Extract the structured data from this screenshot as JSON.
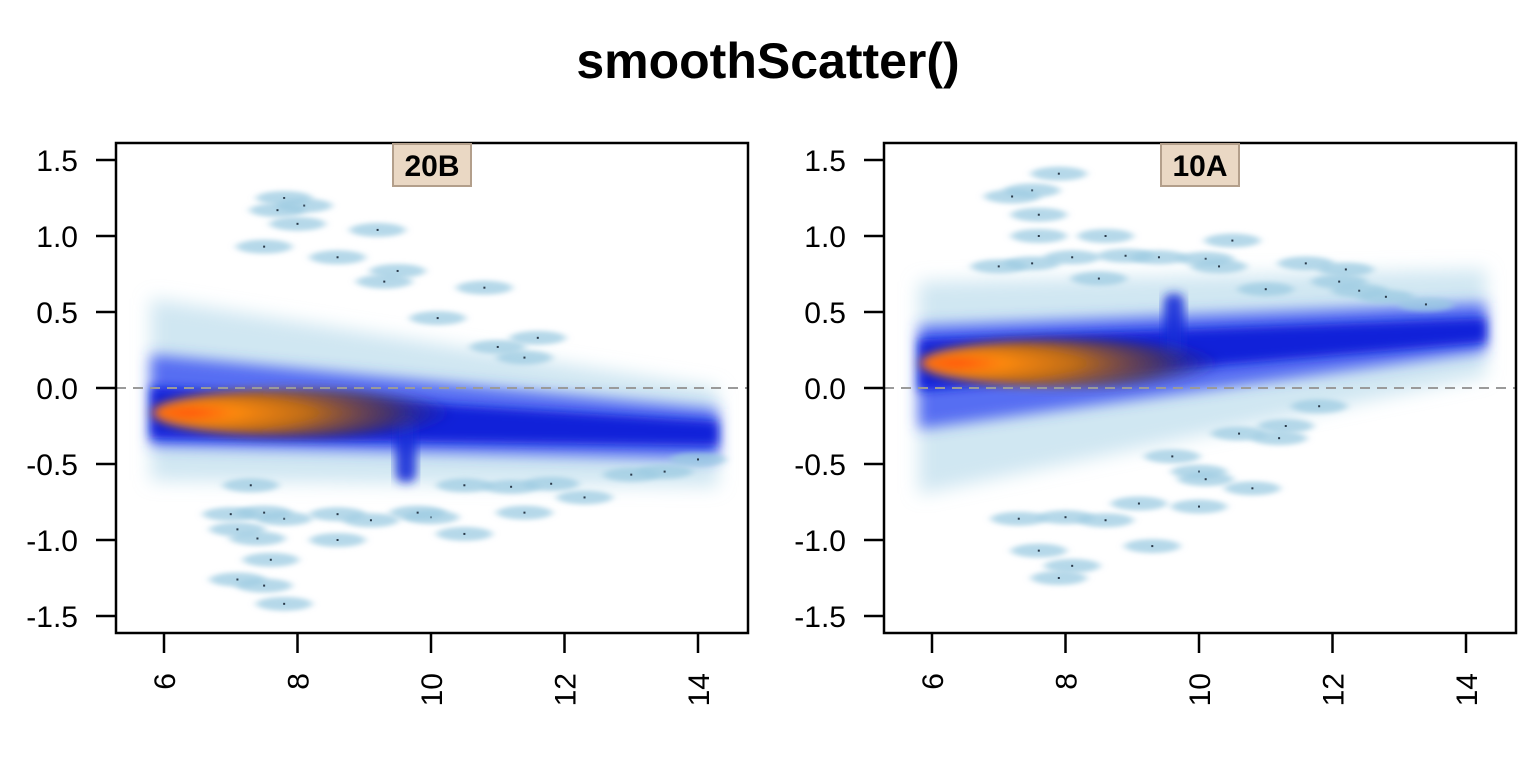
{
  "title": "smoothScatter()",
  "chart_data": [
    {
      "type": "heatmap",
      "panel_label": "20B",
      "xlim": [
        5.3,
        14.8
      ],
      "ylim": [
        -1.62,
        1.62
      ],
      "x_ticks": [
        6,
        8,
        10,
        12,
        14
      ],
      "x_tick_labels": [
        "6",
        "8",
        "10",
        "12",
        "14"
      ],
      "y_ticks": [
        1.5,
        1.0,
        0.5,
        0.0,
        -0.5,
        -1.0,
        -1.5
      ],
      "y_tick_labels": [
        "1.5",
        "1.0",
        "0.5",
        "0.0",
        "-0.5",
        "-1.0",
        "-1.5"
      ],
      "reference_line_y": 0.0,
      "density_core": {
        "x_start": 5.8,
        "x_end": 14.3,
        "y_start": -0.16,
        "y_end": -0.3
      },
      "peak": {
        "x": 6.5,
        "y": -0.15
      },
      "outliers": [
        [
          7.8,
          1.25
        ],
        [
          8.1,
          1.2
        ],
        [
          7.7,
          1.17
        ],
        [
          8.0,
          1.08
        ],
        [
          9.2,
          1.04
        ],
        [
          7.5,
          0.93
        ],
        [
          8.6,
          0.86
        ],
        [
          9.5,
          0.77
        ],
        [
          9.3,
          0.7
        ],
        [
          10.8,
          0.66
        ],
        [
          10.1,
          0.46
        ],
        [
          11.6,
          0.33
        ],
        [
          11.4,
          0.2
        ],
        [
          11.0,
          0.27
        ],
        [
          14.0,
          -0.47
        ],
        [
          13.5,
          -0.55
        ],
        [
          13.0,
          -0.57
        ],
        [
          11.8,
          -0.63
        ],
        [
          11.2,
          -0.65
        ],
        [
          10.5,
          -0.64
        ],
        [
          12.3,
          -0.72
        ],
        [
          11.4,
          -0.82
        ],
        [
          10.0,
          -0.85
        ],
        [
          9.8,
          -0.82
        ],
        [
          9.1,
          -0.87
        ],
        [
          8.6,
          -0.83
        ],
        [
          7.8,
          -0.86
        ],
        [
          7.5,
          -0.82
        ],
        [
          7.0,
          -0.83
        ],
        [
          7.4,
          -0.99
        ],
        [
          8.6,
          -1.0
        ],
        [
          7.1,
          -0.93
        ],
        [
          7.6,
          -1.13
        ],
        [
          7.1,
          -1.26
        ],
        [
          7.5,
          -1.3
        ],
        [
          7.8,
          -1.42
        ],
        [
          10.5,
          -0.96
        ],
        [
          7.3,
          -0.64
        ]
      ]
    },
    {
      "type": "heatmap",
      "panel_label": "10A",
      "xlim": [
        5.3,
        14.8
      ],
      "ylim": [
        -1.62,
        1.62
      ],
      "x_ticks": [
        6,
        8,
        10,
        12,
        14
      ],
      "x_tick_labels": [
        "6",
        "8",
        "10",
        "12",
        "14"
      ],
      "y_ticks": [
        1.5,
        1.0,
        0.5,
        0.0,
        -0.5,
        -1.0,
        -1.5
      ],
      "y_tick_labels": [
        "1.5",
        "1.0",
        "0.5",
        "0.0",
        "-0.5",
        "-1.0",
        "-1.5"
      ],
      "reference_line_y": 0.0,
      "density_core": {
        "x_start": 5.8,
        "x_end": 14.3,
        "y_start": 0.15,
        "y_end": 0.38
      },
      "peak": {
        "x": 6.5,
        "y": 0.15
      },
      "outliers": [
        [
          7.9,
          1.41
        ],
        [
          7.5,
          1.3
        ],
        [
          7.2,
          1.26
        ],
        [
          7.6,
          1.14
        ],
        [
          7.6,
          1.0
        ],
        [
          8.6,
          1.0
        ],
        [
          7.0,
          0.8
        ],
        [
          7.5,
          0.82
        ],
        [
          8.1,
          0.86
        ],
        [
          8.9,
          0.87
        ],
        [
          8.5,
          0.72
        ],
        [
          9.4,
          0.86
        ],
        [
          10.1,
          0.85
        ],
        [
          10.5,
          0.97
        ],
        [
          10.3,
          0.8
        ],
        [
          11.0,
          0.65
        ],
        [
          11.6,
          0.82
        ],
        [
          12.2,
          0.78
        ],
        [
          12.4,
          0.64
        ],
        [
          12.1,
          0.7
        ],
        [
          12.8,
          0.6
        ],
        [
          13.4,
          0.55
        ],
        [
          11.8,
          -0.12
        ],
        [
          11.3,
          -0.25
        ],
        [
          10.6,
          -0.3
        ],
        [
          11.2,
          -0.33
        ],
        [
          10.0,
          -0.55
        ],
        [
          9.6,
          -0.45
        ],
        [
          10.1,
          -0.6
        ],
        [
          10.8,
          -0.66
        ],
        [
          9.1,
          -0.76
        ],
        [
          8.6,
          -0.87
        ],
        [
          8.0,
          -0.85
        ],
        [
          7.3,
          -0.86
        ],
        [
          7.6,
          -1.07
        ],
        [
          8.1,
          -1.17
        ],
        [
          7.9,
          -1.25
        ],
        [
          9.3,
          -1.04
        ],
        [
          10.0,
          -0.78
        ]
      ]
    }
  ]
}
